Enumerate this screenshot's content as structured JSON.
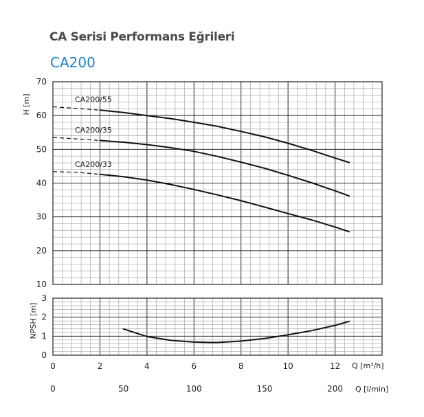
{
  "header": {
    "title": "CA Serisi Performans Eğrileri",
    "subtitle": "CA200"
  },
  "chart_data": [
    {
      "type": "line",
      "ylabel": "H [m]",
      "ylim": [
        10,
        70
      ],
      "yticks": [
        "10",
        "20",
        "30",
        "40",
        "50",
        "60",
        "70"
      ],
      "xlim": [
        0,
        14
      ],
      "grid": true,
      "series": [
        {
          "name": "CA200/55",
          "x": [
            0,
            1,
            2,
            3,
            4,
            5,
            6,
            7,
            8,
            9,
            10,
            11,
            12,
            12.6
          ],
          "y": [
            62.6,
            62.1,
            61.6,
            60.9,
            60.0,
            59.1,
            58.0,
            56.8,
            55.3,
            53.7,
            51.8,
            49.7,
            47.4,
            46.1
          ],
          "dashed_until": 2
        },
        {
          "name": "CA200/35",
          "x": [
            0,
            1,
            2,
            3,
            4,
            5,
            6,
            7,
            8,
            9,
            10,
            11,
            12,
            12.6
          ],
          "y": [
            53.5,
            53.1,
            52.6,
            52.1,
            51.4,
            50.5,
            49.4,
            47.9,
            46.2,
            44.4,
            42.3,
            40.1,
            37.7,
            36.2
          ],
          "dashed_until": 2
        },
        {
          "name": "CA200/33",
          "x": [
            0,
            1,
            2,
            3,
            4,
            5,
            6,
            7,
            8,
            9,
            10,
            11,
            12,
            12.6
          ],
          "y": [
            43.4,
            43.2,
            42.6,
            41.9,
            40.9,
            39.6,
            38.1,
            36.5,
            34.8,
            32.9,
            31.0,
            29.1,
            27.0,
            25.6
          ],
          "dashed_until": 2
        }
      ]
    },
    {
      "type": "line",
      "ylabel": "NPSH [m]",
      "ylim": [
        0,
        3
      ],
      "yticks": [
        "0",
        "1",
        "2",
        "3"
      ],
      "xlim": [
        0,
        14
      ],
      "grid": true,
      "series": [
        {
          "x": [
            3,
            4,
            5,
            6,
            6.7,
            7,
            8,
            9,
            10,
            11,
            12,
            12.6
          ],
          "y": [
            1.38,
            0.98,
            0.78,
            0.69,
            0.67,
            0.67,
            0.74,
            0.88,
            1.07,
            1.29,
            1.57,
            1.78
          ]
        }
      ]
    }
  ],
  "axes": {
    "x1_label": "Q [m³/h]",
    "x1_ticks": [
      "0",
      "2",
      "4",
      "6",
      "8",
      "10",
      "12"
    ],
    "x2_label": "Q [l/min]",
    "x2_ticks": [
      "0",
      "50",
      "100",
      "150",
      "200"
    ],
    "x2_tick_values_m3h": [
      0,
      3,
      6,
      9,
      12
    ]
  },
  "colors": {
    "title": "#4a4a4a",
    "subtitle": "#1c86c4",
    "grid_major": "#222222",
    "grid_minor": "#9a9a9a",
    "curve": "#111111"
  }
}
